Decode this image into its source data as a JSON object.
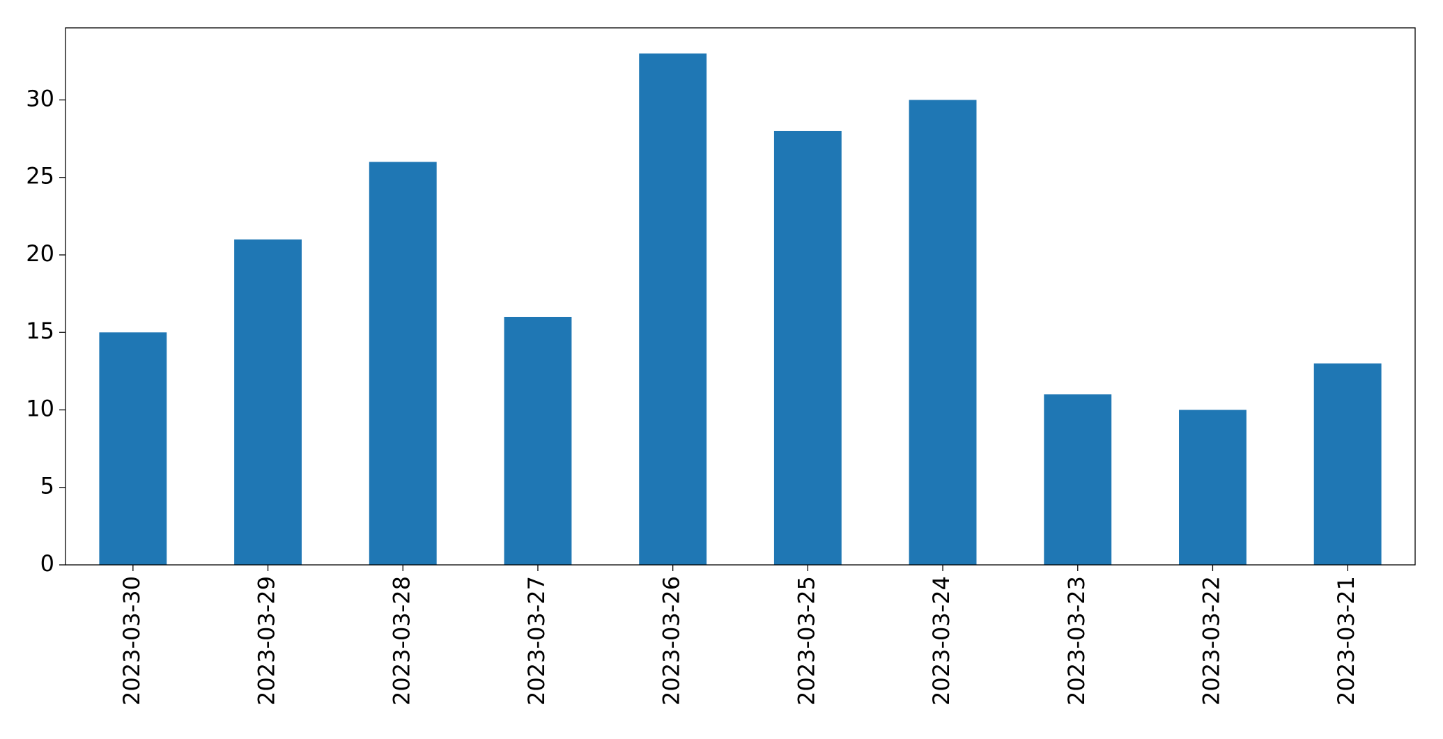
{
  "chart_data": {
    "type": "bar",
    "categories": [
      "2023-03-30",
      "2023-03-29",
      "2023-03-28",
      "2023-03-27",
      "2023-03-26",
      "2023-03-25",
      "2023-03-24",
      "2023-03-23",
      "2023-03-22",
      "2023-03-21"
    ],
    "values": [
      15,
      21,
      26,
      16,
      33,
      28,
      30,
      11,
      10,
      13
    ],
    "color": "#1f77b4",
    "ylim": [
      0,
      34.65
    ],
    "yticks": [
      0,
      5,
      10,
      15,
      20,
      25,
      30
    ],
    "grid": false
  }
}
